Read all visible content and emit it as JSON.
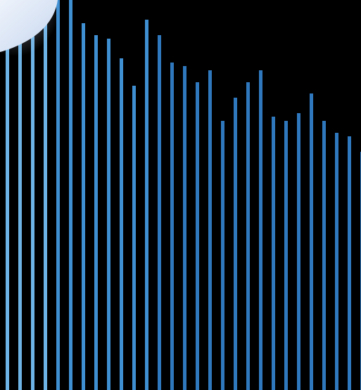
{
  "scene": {
    "background_color": "#000000",
    "bar_colors": {
      "light_blue": "#6fb4e6",
      "mid_blue": "#3f8fd3",
      "deep_blue": "#2f78bd"
    },
    "corner_shape_color": "#d9e4f4"
  },
  "bars": {
    "count": 29,
    "levels": [
      1.0,
      1.0,
      1.0,
      1.0,
      1.0,
      1.0,
      0.94,
      0.91,
      0.9,
      0.85,
      0.78,
      0.95,
      0.91,
      0.84,
      0.83,
      0.79,
      0.82,
      0.69,
      0.75,
      0.79,
      0.82,
      0.7,
      0.69,
      0.71,
      0.76,
      0.69,
      0.66,
      0.65,
      0.61
    ]
  }
}
